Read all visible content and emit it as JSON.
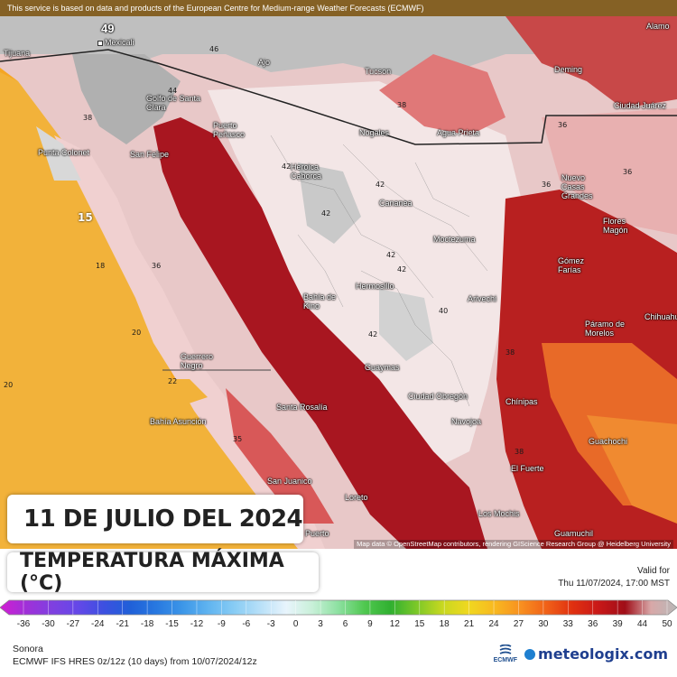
{
  "attribution": "This service is based on data and products of the European Centre for Medium-range Weather Forecasts (ECMWF)",
  "map_credit": "Map data © OpenStreetMap contributors, rendering GIScience Research Group @ Heidelberg University",
  "date_label": "11 DE JULIO DEL 2024",
  "title": "TEMPERATURA MÁXIMA (°C)",
  "valid_label": "Valid for",
  "valid_time": "Thu 11/07/2024, 17:00 MST",
  "region": "Sonora",
  "model_run": "ECMWF IFS HRES 0z/12z (10 days) from 10/07/2024/12z",
  "logo_ecmwf": "ECMWF",
  "logo_brand": "meteologix.com",
  "scale": {
    "ticks": [
      "-36",
      "-30",
      "-27",
      "-24",
      "-21",
      "-18",
      "-15",
      "-12",
      "-9",
      "-6",
      "-3",
      "0",
      "3",
      "6",
      "9",
      "12",
      "15",
      "18",
      "21",
      "24",
      "27",
      "30",
      "33",
      "36",
      "39",
      "44",
      "50"
    ],
    "colors": [
      "#d21ed2",
      "#a030d8",
      "#8040e0",
      "#6448e8",
      "#3c50e0",
      "#2060d8",
      "#2878e0",
      "#3c96e8",
      "#60b4f0",
      "#88ccf4",
      "#b8e0f8",
      "#e8f4fc",
      "#c8f0d8",
      "#8ce0a0",
      "#50c850",
      "#30b030",
      "#7cc828",
      "#c8d820",
      "#f0d820",
      "#f8b820",
      "#f89020",
      "#f06018",
      "#e03010",
      "#c81818",
      "#a00e18",
      "#d8a8a8",
      "#b8b8b8"
    ]
  },
  "places": [
    {
      "name": "Mexicali",
      "value": "49"
    },
    {
      "name": "Tijuana"
    },
    {
      "name": "Tucson"
    },
    {
      "name": "Ajo"
    },
    {
      "name": "Nogales"
    },
    {
      "name": "Agua Prieta"
    },
    {
      "name": "Deming"
    },
    {
      "name": "Ciudad Juárez"
    },
    {
      "name": "Golfo de Santa Clara"
    },
    {
      "name": "Puerto Peñasco"
    },
    {
      "name": "San Felipe"
    },
    {
      "name": "Punta Colonet"
    },
    {
      "name": "Heroica Caborca"
    },
    {
      "name": "Cananea"
    },
    {
      "name": "Nuevo Casas Grandes"
    },
    {
      "name": "Flores Magón"
    },
    {
      "name": "Moctezuma"
    },
    {
      "name": "Hermosillo"
    },
    {
      "name": "Bahía de Kino"
    },
    {
      "name": "Gómez Farías"
    },
    {
      "name": "Arivechi"
    },
    {
      "name": "Chihuahua"
    },
    {
      "name": "Páramo de Morelos"
    },
    {
      "name": "Guerrero Negro"
    },
    {
      "name": "Guaymas"
    },
    {
      "name": "Ciudad Obregón"
    },
    {
      "name": "Chínipas"
    },
    {
      "name": "Navojoa"
    },
    {
      "name": "Bahía Asunción"
    },
    {
      "name": "Santa Rosalía"
    },
    {
      "name": "Guachochi"
    },
    {
      "name": "El Fuerte"
    },
    {
      "name": "San Juanico"
    },
    {
      "name": "Loreto"
    },
    {
      "name": "Los Mochis"
    },
    {
      "name": "Guamuchil"
    },
    {
      "name": "Puerto"
    },
    {
      "name": "Alamo"
    }
  ],
  "temps": [
    "46",
    "38",
    "42",
    "42",
    "42",
    "42",
    "38",
    "36",
    "36",
    "15",
    "18",
    "20",
    "22",
    "20",
    "40",
    "42",
    "35",
    "38",
    "42",
    "36",
    "36",
    "38",
    "44"
  ]
}
